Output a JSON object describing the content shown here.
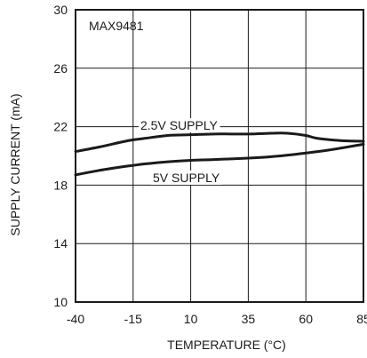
{
  "chart_data": {
    "type": "line",
    "title": "MAX9481",
    "xlabel": "TEMPERATURE (°C)",
    "ylabel": "SUPPLY CURRENT (mA)",
    "xlim": [
      -40,
      85
    ],
    "ylim": [
      10,
      30
    ],
    "x_ticks": [
      -40,
      -15,
      10,
      35,
      60,
      85
    ],
    "x_tick_labels": [
      "-40",
      "-15",
      "10",
      "35",
      "60",
      "85"
    ],
    "y_ticks": [
      10,
      14,
      18,
      22,
      26,
      30
    ],
    "y_tick_labels": [
      "10",
      "14",
      "18",
      "22",
      "26",
      "30"
    ],
    "grid": true,
    "series": [
      {
        "name": "2.5V SUPPLY",
        "x": [
          -40,
          -30,
          -20,
          -15,
          -10,
          0,
          10,
          20,
          35,
          45,
          52,
          60,
          65,
          75,
          85
        ],
        "y": [
          20.3,
          20.6,
          20.95,
          21.1,
          21.2,
          21.4,
          21.45,
          21.5,
          21.5,
          21.55,
          21.55,
          21.4,
          21.2,
          21.05,
          21.0
        ]
      },
      {
        "name": "5V SUPPLY",
        "x": [
          -40,
          -30,
          -20,
          -15,
          -10,
          0,
          10,
          20,
          35,
          45,
          55,
          60,
          70,
          85
        ],
        "y": [
          18.7,
          19.0,
          19.25,
          19.35,
          19.45,
          19.6,
          19.7,
          19.75,
          19.85,
          19.95,
          20.1,
          20.2,
          20.4,
          20.8
        ]
      }
    ],
    "annotations": [
      {
        "text": "2.5V SUPPLY",
        "series": 0
      },
      {
        "text": "5V SUPPLY",
        "series": 1
      }
    ]
  }
}
